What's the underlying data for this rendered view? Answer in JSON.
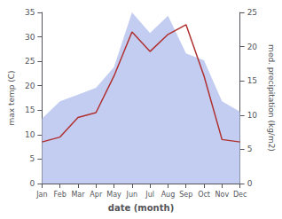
{
  "chart_data": {
    "type": "line",
    "categories": [
      "Jan",
      "Feb",
      "Mar",
      "Apr",
      "May",
      "Jun",
      "Jul",
      "Aug",
      "Sep",
      "Oct",
      "Nov",
      "Dec"
    ],
    "xlabel": "date (month)",
    "ylabel": "max temp (C)",
    "y2label": "med. precipitation (kg/m2)",
    "series": [
      {
        "type": "area",
        "axis": "y2",
        "color": "#b8c4ee",
        "values": [
          9.5,
          12.0,
          13.0,
          14.0,
          17.0,
          25.0,
          22.0,
          24.5,
          19.0,
          18.0,
          12.0,
          10.5
        ]
      },
      {
        "type": "line",
        "color": "#b03030",
        "values": [
          8.5,
          9.5,
          13.5,
          14.5,
          22.0,
          31.0,
          27.0,
          30.5,
          32.5,
          22.0,
          9.0,
          8.5
        ]
      }
    ],
    "ylim": [
      0,
      35
    ],
    "yticks": [
      0,
      5,
      10,
      15,
      20,
      25,
      30,
      35
    ],
    "y2lim": [
      0,
      25
    ],
    "y2ticks": [
      0,
      5,
      10,
      15,
      20,
      25
    ],
    "grid": false
  }
}
